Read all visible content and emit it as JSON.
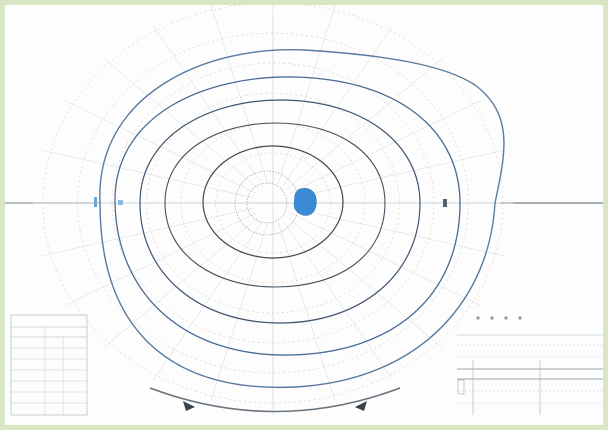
{
  "image": {
    "background": "#d8e6c3",
    "sheet_color": "#fcfdfc",
    "blue_spot_color": "#3a8ad6"
  },
  "header": {
    "top_left": "",
    "right_lines": [
      "",
      "",
      ""
    ]
  },
  "legend": {
    "title": "",
    "rows": [
      "",
      "",
      "",
      "",
      "",
      "",
      "",
      ""
    ]
  },
  "bottom_caption": {
    "line1": "",
    "line2": ""
  },
  "right_panel": {
    "label_a": "",
    "label_b": "",
    "label_c": ""
  },
  "footer": {
    "left": "",
    "right": ""
  }
}
